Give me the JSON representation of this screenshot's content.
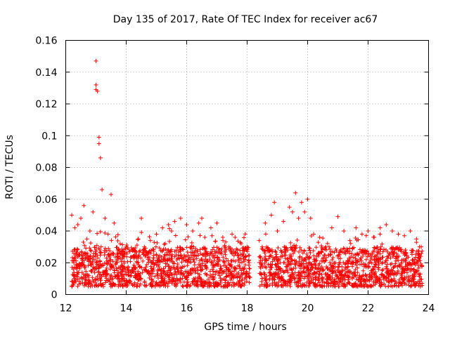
{
  "chart_data": {
    "type": "scatter",
    "title": "Day 135 of 2017, Rate Of TEC Index for receiver ac67",
    "xlabel": "GPS time / hours",
    "ylabel": "ROTI / TECUs",
    "xlim": [
      12,
      24
    ],
    "ylim": [
      0,
      0.16
    ],
    "xticks": [
      12,
      14,
      16,
      18,
      20,
      22,
      24
    ],
    "xtick_labels": [
      "12",
      "14",
      "16",
      "18",
      "20",
      "22",
      "24"
    ],
    "yticks": [
      0,
      0.02,
      0.04,
      0.06,
      0.08,
      0.1,
      0.12,
      0.14,
      0.16
    ],
    "ytick_labels": [
      "0",
      "0.02",
      "0.04",
      "0.06",
      "0.08",
      "0.1",
      "0.12",
      "0.14",
      "0.16"
    ],
    "grid": true,
    "marker": "+",
    "color": "#ff0000",
    "series": [
      {
        "name": "ROTI",
        "x": [
          12.2,
          12.3,
          12.4,
          12.5,
          12.6,
          12.7,
          12.8,
          12.9,
          13.0,
          13.0,
          13.0,
          13.05,
          13.1,
          13.1,
          13.15,
          13.2,
          13.3,
          13.4,
          13.5,
          13.6,
          13.8,
          14.0,
          14.2,
          14.4,
          14.5,
          14.6,
          14.8,
          15.0,
          15.2,
          15.4,
          15.5,
          15.6,
          15.8,
          16.0,
          16.2,
          16.4,
          16.5,
          16.6,
          16.8,
          17.0,
          17.2,
          17.4,
          17.5,
          17.6,
          17.8,
          18.0,
          18.4,
          18.5,
          18.6,
          18.8,
          18.9,
          19.0,
          19.2,
          19.4,
          19.5,
          19.6,
          19.7,
          19.8,
          19.9,
          20.0,
          20.1,
          20.2,
          20.4,
          20.6,
          20.8,
          21.0,
          21.2,
          21.4,
          21.6,
          21.8,
          22.0,
          22.2,
          22.4,
          22.6,
          22.8,
          23.0,
          23.2,
          23.4,
          23.6,
          23.7
        ],
        "y": [
          0.05,
          0.042,
          0.044,
          0.048,
          0.056,
          0.035,
          0.04,
          0.052,
          0.147,
          0.132,
          0.129,
          0.128,
          0.099,
          0.095,
          0.086,
          0.066,
          0.048,
          0.038,
          0.063,
          0.045,
          0.032,
          0.03,
          0.028,
          0.035,
          0.048,
          0.03,
          0.034,
          0.038,
          0.042,
          0.044,
          0.04,
          0.046,
          0.048,
          0.044,
          0.04,
          0.045,
          0.048,
          0.036,
          0.042,
          0.045,
          0.034,
          0.03,
          0.038,
          0.036,
          0.032,
          0.03,
          0.034,
          0.03,
          0.045,
          0.05,
          0.058,
          0.04,
          0.046,
          0.055,
          0.052,
          0.064,
          0.048,
          0.058,
          0.052,
          0.06,
          0.048,
          0.038,
          0.036,
          0.03,
          0.042,
          0.049,
          0.04,
          0.034,
          0.042,
          0.038,
          0.04,
          0.036,
          0.042,
          0.044,
          0.04,
          0.038,
          0.037,
          0.04,
          0.035,
          0.03
        ]
      }
    ],
    "dense_band": {
      "description_free": true,
      "segments": [
        [
          12.2,
          18.1
        ],
        [
          18.4,
          23.8
        ]
      ],
      "typical_low": 0.005,
      "typical_high": 0.03
    }
  }
}
